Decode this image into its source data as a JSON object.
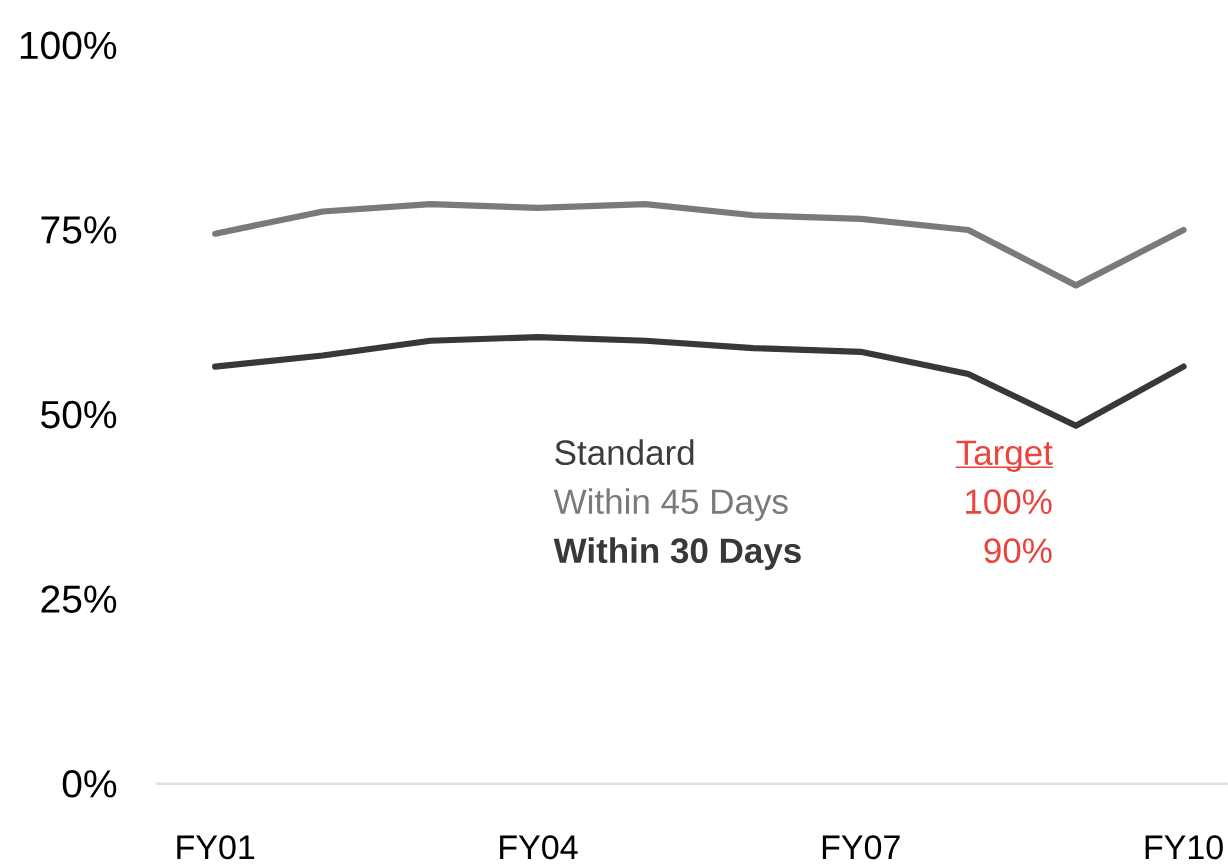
{
  "chart_data": {
    "type": "line",
    "categories": [
      "FY01",
      null,
      null,
      "FY04",
      null,
      null,
      "FY07",
      null,
      null,
      "FY10"
    ],
    "series": [
      {
        "name": "Within 45 Days",
        "color": "#7a7a7a",
        "values": [
          74.5,
          77.5,
          78.5,
          78,
          78.5,
          77,
          76.5,
          75,
          67.5,
          75
        ]
      },
      {
        "name": "Within 30 Days",
        "color": "#383838",
        "values": [
          56.5,
          58,
          60,
          60.5,
          60,
          59,
          58.5,
          55.5,
          48.5,
          56.5
        ]
      }
    ],
    "ylim": [
      0,
      100
    ],
    "yticks": [
      {
        "value": 0,
        "label": "0%"
      },
      {
        "value": 25,
        "label": "25%"
      },
      {
        "value": 50,
        "label": "50%"
      },
      {
        "value": 75,
        "label": "75%"
      },
      {
        "value": 100,
        "label": "100%"
      }
    ],
    "legend": "center",
    "legend_title": "Standard",
    "annotations": [
      "Target",
      "100%",
      "90%"
    ],
    "line_style": "solid"
  }
}
